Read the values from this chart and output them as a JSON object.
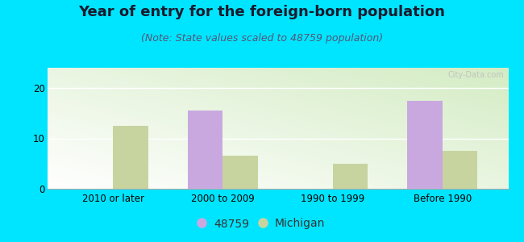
{
  "title": "Year of entry for the foreign-born population",
  "subtitle": "(Note: State values scaled to 48759 population)",
  "categories": [
    "2010 or later",
    "2000 to 2009",
    "1990 to 1999",
    "Before 1990"
  ],
  "values_48759": [
    0,
    15.5,
    0,
    17.5
  ],
  "values_michigan": [
    12.5,
    6.5,
    5.0,
    7.5
  ],
  "color_48759": "#c9a8e0",
  "color_michigan": "#c8d4a0",
  "background_outer": "#00e5ff",
  "ylim": [
    0,
    24
  ],
  "yticks": [
    0,
    10,
    20
  ],
  "bar_width": 0.32,
  "legend_label_48759": "48759",
  "legend_label_michigan": "Michigan",
  "title_fontsize": 13,
  "subtitle_fontsize": 9,
  "tick_fontsize": 8.5,
  "legend_fontsize": 10
}
